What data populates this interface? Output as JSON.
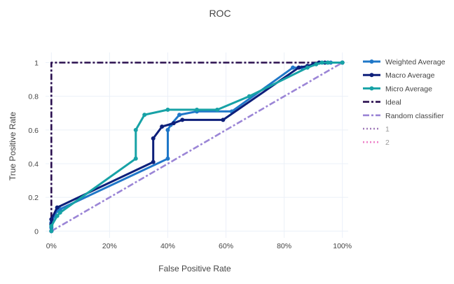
{
  "chart_data": {
    "type": "line",
    "title": "ROC",
    "xlabel": "False Positive Rate",
    "ylabel": "True Positive Rate",
    "xlim": [
      -0.02,
      1.02
    ],
    "ylim": [
      -0.04,
      1.06
    ],
    "x_ticks": [
      0,
      0.2,
      0.4,
      0.6,
      0.8,
      1.0
    ],
    "x_tick_labels": [
      "0%",
      "20%",
      "40%",
      "60%",
      "80%",
      "100%"
    ],
    "y_ticks": [
      0,
      0.2,
      0.4,
      0.6,
      0.8,
      1.0
    ],
    "y_tick_labels": [
      "0",
      "0.2",
      "0.4",
      "0.6",
      "0.8",
      "1"
    ],
    "grid": true,
    "legend_position": "right",
    "series": [
      {
        "name": "Weighted Average",
        "color": "#1f77c8",
        "style": "solid",
        "markers": true,
        "x": [
          0,
          0,
          0,
          0.01,
          0.02,
          0.03,
          0.4,
          0.4,
          0.41,
          0.44,
          0.5,
          0.62,
          0.83,
          0.86,
          0.88,
          0.9,
          0.92,
          0.95,
          0.96,
          1.0
        ],
        "y": [
          0,
          0.02,
          0.05,
          0.09,
          0.12,
          0.13,
          0.43,
          0.6,
          0.63,
          0.69,
          0.71,
          0.71,
          0.97,
          0.97,
          0.98,
          0.99,
          1.0,
          1.0,
          1.0,
          1.0
        ]
      },
      {
        "name": "Macro Average",
        "color": "#0d1f7a",
        "style": "solid",
        "markers": true,
        "x": [
          0,
          0,
          0,
          0.02,
          0.35,
          0.35,
          0.38,
          0.42,
          0.45,
          0.59,
          0.85,
          0.88,
          0.9,
          0.92,
          0.94,
          1.0
        ],
        "y": [
          0,
          0.04,
          0.07,
          0.14,
          0.41,
          0.55,
          0.62,
          0.64,
          0.66,
          0.66,
          0.97,
          0.98,
          0.99,
          1.0,
          1.0,
          1.0
        ]
      },
      {
        "name": "Micro Average",
        "color": "#17a2a6",
        "style": "solid",
        "markers": true,
        "x": [
          0,
          0,
          0.02,
          0.03,
          0.29,
          0.29,
          0.32,
          0.4,
          0.5,
          0.57,
          0.68,
          0.88,
          0.91,
          0.93,
          0.95,
          1.0
        ],
        "y": [
          0,
          0.03,
          0.09,
          0.11,
          0.43,
          0.6,
          0.69,
          0.72,
          0.72,
          0.72,
          0.8,
          0.97,
          0.99,
          1.0,
          1.0,
          1.0
        ]
      },
      {
        "name": "Ideal",
        "color": "#2a0f4f",
        "style": "dashdot",
        "markers": false,
        "x": [
          0,
          0,
          1
        ],
        "y": [
          0,
          1,
          1
        ]
      },
      {
        "name": "Random classifier",
        "color": "#9b85d6",
        "style": "dashdot",
        "markers": false,
        "x": [
          0,
          1
        ],
        "y": [
          0,
          1
        ]
      },
      {
        "name": "1",
        "color": "#a07ab8",
        "style": "dot",
        "markers": false,
        "legend_only": true,
        "x": [],
        "y": []
      },
      {
        "name": "2",
        "color": "#ee82c8",
        "style": "dot",
        "markers": false,
        "legend_only": true,
        "x": [],
        "y": []
      }
    ]
  }
}
